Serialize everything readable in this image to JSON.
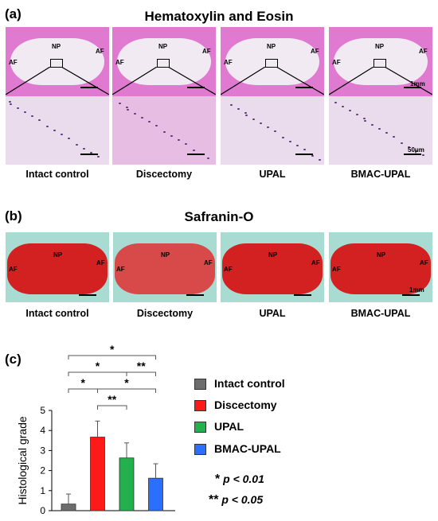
{
  "panels": {
    "a": {
      "letter": "(a)",
      "title": "Hematoxylin and Eosin",
      "tiles": [
        {
          "caption": "Intact control",
          "np": "NP",
          "af_left": "AF",
          "af_right": "AF"
        },
        {
          "caption": "Discectomy",
          "np": "NP",
          "af_left": "AF",
          "af_right": "AF"
        },
        {
          "caption": "UPAL",
          "np": "NP",
          "af_left": "AF",
          "af_right": "AF"
        },
        {
          "caption": "BMAC-UPAL",
          "np": "NP",
          "af_left": "AF",
          "af_right": "AF"
        }
      ],
      "scale_top": "1mm",
      "scale_bottom": "50μm"
    },
    "b": {
      "letter": "(b)",
      "title": "Safranin-O",
      "tiles": [
        {
          "caption": "Intact control",
          "np": "NP",
          "af_left": "AF",
          "af_right": "AF"
        },
        {
          "caption": "Discectomy",
          "np": "NP",
          "af_left": "AF",
          "af_right": "AF"
        },
        {
          "caption": "UPAL",
          "np": "NP",
          "af_left": "AF",
          "af_right": "AF"
        },
        {
          "caption": "BMAC-UPAL",
          "np": "NP",
          "af_left": "AF",
          "af_right": "AF"
        }
      ],
      "scale": "1mm"
    },
    "c": {
      "letter": "(c)"
    }
  },
  "colors": {
    "he_pink": "#e07ad0",
    "he_light": "#f2eaf3",
    "saf_red": "#d32020",
    "saf_green": "#a8dcd2",
    "bar_intact": "#6d6d6d",
    "bar_discectomy": "#ff1a1a",
    "bar_upal": "#22b14c",
    "bar_bmac": "#2b6fff"
  },
  "chart_data": {
    "type": "bar",
    "categories": [
      "Intact control",
      "Discectomy",
      "UPAL",
      "BMAC-UPAL"
    ],
    "values": [
      0.33,
      3.67,
      2.63,
      1.62
    ],
    "errors": [
      0.5,
      0.8,
      0.75,
      0.72
    ],
    "ylabel": "Histological grade",
    "xlabel": "",
    "ylim": [
      0,
      5
    ],
    "yticks": [
      "0",
      "1",
      "2",
      "3",
      "4",
      "5"
    ],
    "legend": [
      {
        "name": "Intact control",
        "color": "#6d6d6d"
      },
      {
        "name": "Discectomy",
        "color": "#ff1a1a"
      },
      {
        "name": "UPAL",
        "color": "#22b14c"
      },
      {
        "name": "BMAC-UPAL",
        "color": "#2b6fff"
      }
    ],
    "legend_position": "right",
    "grid": false,
    "significance": [
      {
        "from": 0,
        "to": 3,
        "label": "*"
      },
      {
        "from": 0,
        "to": 2,
        "label": "*"
      },
      {
        "from": 2,
        "to": 3,
        "label": "**"
      },
      {
        "from": 0,
        "to": 1,
        "label": "*"
      },
      {
        "from": 1,
        "to": 3,
        "label": "*"
      },
      {
        "from": 1,
        "to": 2,
        "label": "**"
      }
    ],
    "notes": [
      {
        "star": "*",
        "text": "p < 0.01"
      },
      {
        "star": "**",
        "text": "p < 0.05"
      }
    ]
  }
}
